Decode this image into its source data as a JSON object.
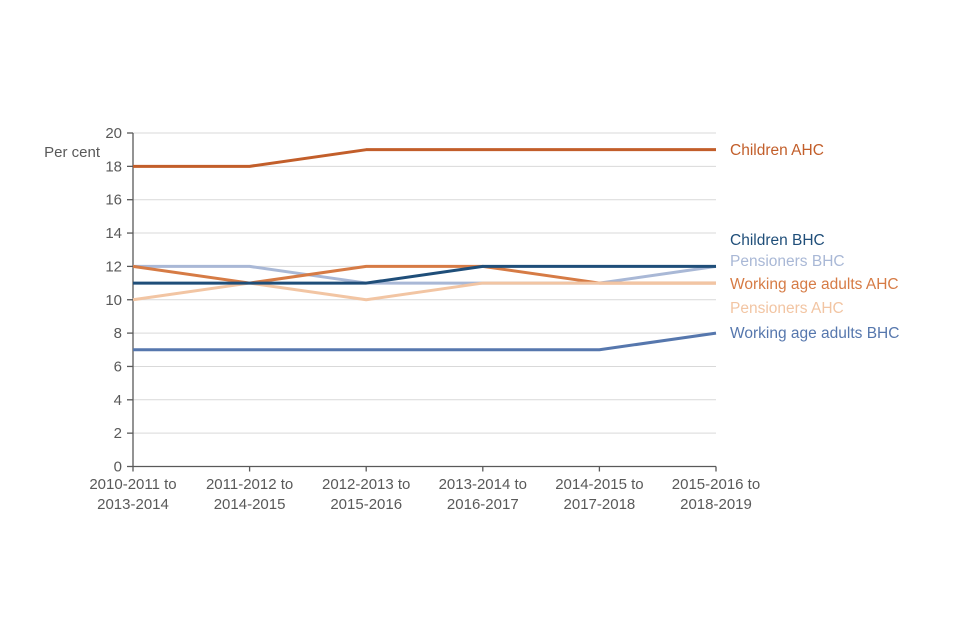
{
  "chart_data": {
    "type": "line",
    "title": "",
    "ylabel": "Per cent",
    "xlabel": "",
    "ylim": [
      0,
      20
    ],
    "ytick_step": 2,
    "grid": "horizontal",
    "legend_position": "right-of-line-ends",
    "categories": [
      "2010-2011 to 2013-2014",
      "2011-2012 to 2014-2015",
      "2012-2013 to 2015-2016",
      "2013-2014 to 2016-2017",
      "2014-2015 to 2017-2018",
      "2015-2016 to 2018-2019"
    ],
    "series": [
      {
        "name": "Children AHC",
        "color": "#C25E2A",
        "values": [
          18,
          18,
          19,
          19,
          19,
          19
        ]
      },
      {
        "name": "Children BHC",
        "color": "#1F4E79",
        "values": [
          11,
          11,
          11,
          12,
          12,
          12
        ]
      },
      {
        "name": "Pensioners BHC",
        "color": "#A9B8D6",
        "values": [
          12,
          12,
          11,
          11,
          11,
          12
        ]
      },
      {
        "name": "Working age adults AHC",
        "color": "#D67B45",
        "values": [
          12,
          11,
          12,
          12,
          11,
          11
        ]
      },
      {
        "name": "Pensioners AHC",
        "color": "#F2C5A3",
        "values": [
          10,
          11,
          10,
          11,
          11,
          11
        ]
      },
      {
        "name": "Working age adults BHC",
        "color": "#5677AD",
        "values": [
          7,
          7,
          7,
          7,
          7,
          8
        ]
      }
    ],
    "colors": {
      "axis": "#595959",
      "gridline": "#D9D9D9",
      "tick_text": "#595959"
    }
  }
}
